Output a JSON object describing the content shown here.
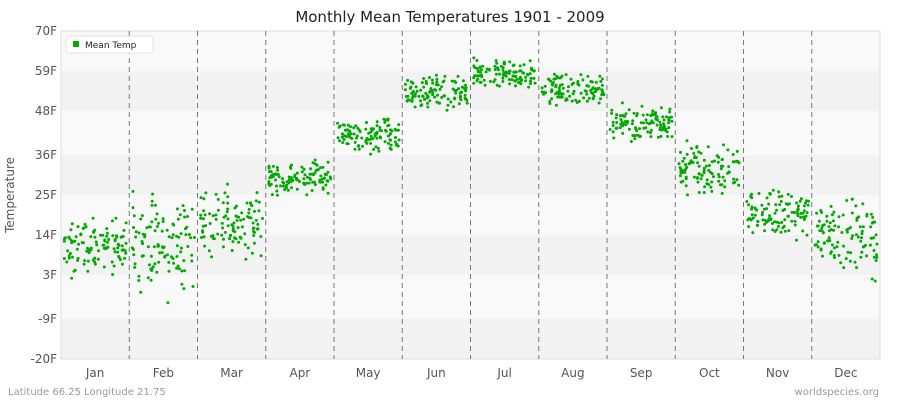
{
  "chart_data": {
    "type": "scatter",
    "title": "Monthly Mean Temperatures 1901 - 2009",
    "xlabel": "",
    "ylabel": "Temperature",
    "ylim": [
      -20,
      70
    ],
    "y_ticks": [
      "70F",
      "59F",
      "48F",
      "36F",
      "25F",
      "14F",
      "3F",
      "-9F",
      "-20F"
    ],
    "y_tick_values": [
      70,
      59,
      48,
      36,
      25,
      14,
      3,
      -9,
      -20
    ],
    "categories": [
      "Jan",
      "Feb",
      "Mar",
      "Apr",
      "May",
      "Jun",
      "Jul",
      "Aug",
      "Sep",
      "Oct",
      "Nov",
      "Dec"
    ],
    "grid": "alternating horizontal bands, dashed vertical month separators",
    "legend_placement": "top-left",
    "series": [
      {
        "name": "Mean Temp",
        "color": "#00aa00",
        "monthly_mean": [
          11,
          11.5,
          17.5,
          29.5,
          41.5,
          52.5,
          58,
          54,
          45,
          32,
          20,
          14
        ],
        "monthly_min": [
          1,
          -10,
          5,
          24,
          35,
          46,
          53,
          49,
          39,
          24,
          8,
          -2
        ],
        "monthly_max": [
          24,
          26,
          29,
          37,
          48,
          60,
          64,
          61,
          52,
          43,
          29,
          28
        ],
        "points_per_month": 109
      }
    ]
  },
  "footer": {
    "left": "Latitude 66.25 Longitude 21.75",
    "right": "worldspecies.org"
  }
}
